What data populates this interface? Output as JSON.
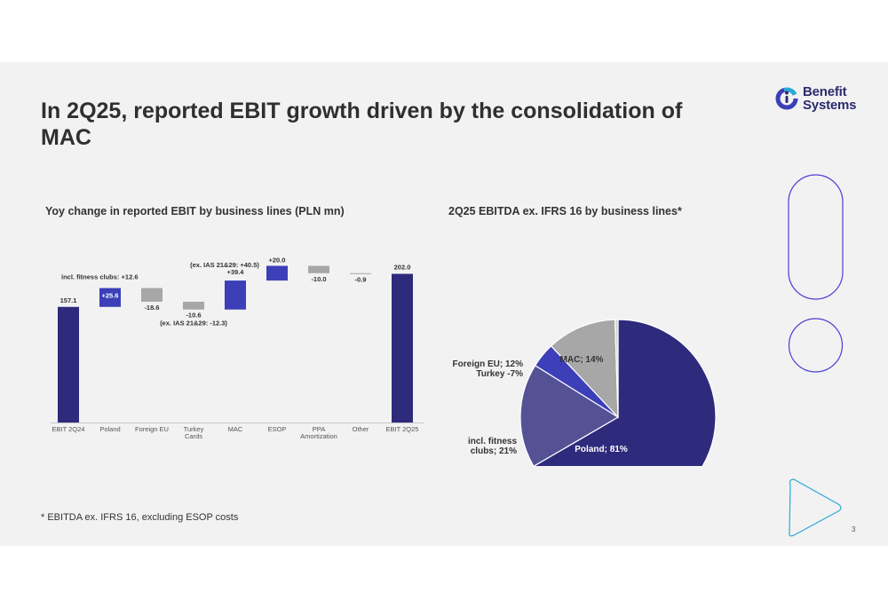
{
  "slide": {
    "title": "In 2Q25, reported EBIT growth driven by the consolidation of MAC",
    "logo": {
      "line1": "Benefit",
      "line2": "Systems",
      "icon": "benefit-systems-logo-icon"
    },
    "footnote": "* EBITDA ex. IFRS 16, excluding ESOP costs",
    "page_number": "3",
    "colors": {
      "primary": "#2e2a7c",
      "accent": "#3c3fb8",
      "mid": "#555195",
      "gray": "#a7a7a7",
      "outline": "#4b3fd6",
      "outline_cyan": "#2aa9d6"
    }
  },
  "chart_data": [
    {
      "type": "waterfall",
      "title": "Yoy change in reported EBIT by business lines (PLN mn)",
      "categories": [
        "EBIT 2Q24",
        "Poland",
        "Foreign EU",
        "Turkey Cards",
        "MAC",
        "ESOP",
        "PPA Amortization",
        "Other",
        "EBIT 2Q25"
      ],
      "category_lines": [
        [
          "EBIT 2Q24"
        ],
        [
          "Poland"
        ],
        [
          "Foreign EU"
        ],
        [
          "Turkey",
          "Cards"
        ],
        [
          "MAC"
        ],
        [
          "ESOP"
        ],
        [
          "PPA",
          "Amortization"
        ],
        [
          "Other"
        ],
        [
          "EBIT 2Q25"
        ]
      ],
      "values": [
        157.1,
        25.6,
        -18.6,
        -10.6,
        39.4,
        20.0,
        -10.0,
        -0.9,
        202.0
      ],
      "kinds": [
        "total",
        "delta",
        "delta",
        "delta",
        "delta",
        "delta",
        "delta",
        "delta",
        "total"
      ],
      "labels": [
        "157.1",
        "+25.6",
        "-18.6",
        "-10.6",
        "+39.4",
        "+20.0",
        "-10.0",
        "-0.9",
        "202.0"
      ],
      "annotations": {
        "poland": "incl. fitness clubs: +12.6",
        "turkey": "(ex. IAS 21&29: -12.3)",
        "mac": "(ex. IAS 21&29: +40.5)"
      },
      "series_colors": {
        "total": "#2e2a7c",
        "positive": "#3c3fb8",
        "negative": "#a7a7a7"
      }
    },
    {
      "type": "pie",
      "title": "2Q25 EBITDA ex. IFRS 16 by business lines*",
      "slices": [
        {
          "label": "Poland; 81%",
          "value": 81,
          "color": "#2e2a7c"
        },
        {
          "label": "incl. fitness clubs; 21%",
          "value": 21,
          "color": "#555195"
        },
        {
          "label": "Foreign EU; 12% Turkey -7%",
          "value": 5,
          "color": "#3c3fb8"
        },
        {
          "label": "MAC; 14%",
          "value": 14,
          "color": "#a7a7a7"
        },
        {
          "label": "",
          "value": 0.6,
          "color": "#d0d0d0"
        }
      ],
      "label_lines": {
        "poland": [
          "Poland; 81%"
        ],
        "fitness": [
          "incl. fitness",
          "clubs; 21%"
        ],
        "foreign": [
          "Foreign EU; 12%",
          "Turkey -7%"
        ],
        "mac": [
          "MAC; 14%"
        ]
      }
    }
  ]
}
